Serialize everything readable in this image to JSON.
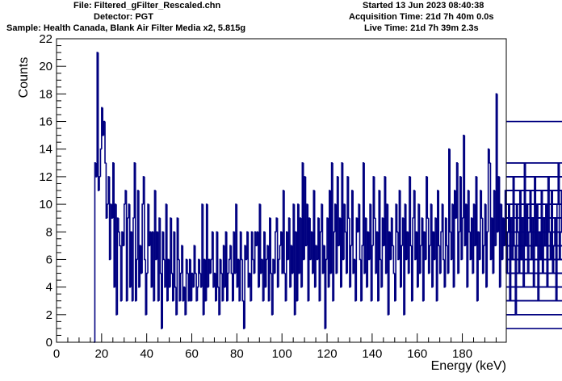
{
  "header": {
    "file": "File: Filtered_gFilter_Rescaled.chn",
    "detector": "Detector: PGT",
    "sample": "Sample: Health Canada, Blank Air Filter Media x2, 5.815g",
    "started": "Started 13 Jun 2023 08:40:38",
    "acquisition_time": "Acquisition Time: 21d 7h 40m 0.0s",
    "live_time": "Live Time: 21d 7h 39m 2.3s"
  },
  "colors": {
    "series": "#000080",
    "axis": "#000000"
  },
  "chart_data": {
    "type": "line",
    "style": "step histogram",
    "xlabel": "Energy (keV)",
    "ylabel": "Counts",
    "xlim": [
      0,
      199.5
    ],
    "ylim": [
      0,
      22
    ],
    "x_ticks": [
      0,
      20,
      40,
      60,
      80,
      100,
      120,
      140,
      160,
      180
    ],
    "y_ticks": [
      0,
      2,
      4,
      6,
      8,
      10,
      12,
      14,
      16,
      18,
      20,
      22
    ],
    "bin_width_keV": 0.5,
    "x_start": 16.5,
    "series": [
      {
        "values": [
          0,
          13,
          12,
          21,
          11,
          12,
          14,
          17,
          15,
          16,
          13,
          9,
          10,
          12,
          6,
          10,
          9,
          13,
          4,
          10,
          2,
          9,
          8,
          7,
          3,
          8,
          7,
          10,
          11,
          3,
          9,
          10,
          4,
          8,
          3,
          9,
          13,
          3,
          6,
          11,
          4,
          7,
          5,
          10,
          12,
          6,
          2,
          5,
          10,
          7,
          8,
          4,
          8,
          3,
          11,
          6,
          8,
          3,
          9,
          5,
          1,
          8,
          6,
          4,
          10,
          3,
          6,
          4,
          9,
          5,
          3,
          8,
          4,
          2,
          9,
          6,
          3,
          5,
          7,
          3,
          4,
          2,
          6,
          5,
          3,
          6,
          3,
          5,
          4,
          7,
          5,
          3,
          4,
          6,
          5,
          4,
          10,
          2,
          6,
          3,
          10,
          4,
          6,
          5,
          6,
          8,
          4,
          5,
          3,
          8,
          4,
          2,
          6,
          5,
          3,
          7,
          4,
          8,
          3,
          5,
          6,
          7,
          5,
          3,
          8,
          5,
          10,
          4,
          6,
          3,
          8,
          6,
          3,
          1,
          7,
          6,
          8,
          4,
          5,
          3,
          8,
          6,
          5,
          8,
          7,
          8,
          4,
          10,
          5,
          6,
          3,
          8,
          4,
          6,
          7,
          3,
          9,
          5,
          2,
          6,
          5,
          8,
          9,
          4,
          6,
          7,
          8,
          5,
          11,
          5,
          3,
          8,
          6,
          9,
          4,
          7,
          5,
          10,
          2,
          8,
          3,
          10,
          5,
          9,
          4,
          13,
          6,
          12,
          7,
          10,
          3,
          9,
          6,
          8,
          5,
          11,
          4,
          7,
          6,
          9,
          3,
          8,
          10,
          5,
          7,
          1,
          6,
          9,
          4,
          11,
          5,
          13,
          3,
          8,
          10,
          5,
          12,
          7,
          9,
          4,
          13,
          6,
          10,
          8,
          5,
          12,
          9,
          4,
          7,
          11,
          5,
          6,
          3,
          9,
          8,
          10,
          6,
          3,
          7,
          13,
          5,
          9,
          4,
          8,
          6,
          10,
          3,
          7,
          12,
          9,
          5,
          8,
          3,
          11,
          6,
          4,
          9,
          7,
          12,
          5,
          10,
          2,
          8,
          6,
          9,
          7,
          5,
          3,
          10,
          8,
          6,
          11,
          4,
          7,
          9,
          2,
          10,
          6,
          8,
          5,
          12,
          7,
          3,
          9,
          11,
          6,
          8,
          4,
          10,
          5,
          7,
          9,
          3,
          8,
          6,
          12,
          9,
          5,
          7,
          10,
          4,
          8,
          6,
          9,
          3,
          11,
          7,
          5,
          8,
          10,
          6,
          4,
          9,
          7,
          5,
          14,
          8,
          6,
          10,
          4,
          11,
          9,
          13,
          5,
          8,
          12,
          6,
          9,
          15,
          7,
          10,
          4,
          11,
          8,
          6,
          9,
          5,
          10,
          7,
          12,
          3,
          8,
          6,
          11,
          9,
          5,
          7,
          10,
          4,
          8,
          14,
          13,
          6,
          9,
          5,
          11,
          7,
          18,
          8,
          12,
          4,
          10,
          6,
          9,
          7,
          11,
          5,
          8,
          10,
          3,
          9,
          6,
          12,
          7,
          2,
          10,
          8,
          5,
          11,
          6,
          9,
          4,
          13,
          7,
          10,
          5,
          8,
          11,
          6,
          9,
          4,
          12,
          7,
          10,
          3,
          8,
          6,
          11,
          5,
          9,
          7,
          10,
          4,
          12,
          8,
          6,
          11,
          5,
          7,
          9,
          3,
          10,
          13,
          6,
          8,
          11,
          5,
          9,
          7,
          12,
          4,
          10,
          8,
          6,
          11,
          3,
          9,
          7,
          10,
          5,
          8,
          12,
          6,
          9,
          4,
          11,
          7,
          10,
          8,
          5,
          12,
          6,
          13,
          9,
          7,
          10,
          4,
          11,
          8,
          1,
          9,
          6,
          12,
          7,
          10,
          5,
          8,
          11,
          6,
          9,
          4,
          10,
          13,
          7,
          8,
          5,
          11,
          6,
          9,
          10,
          4,
          12,
          7,
          8,
          3,
          11,
          6,
          9,
          5,
          10,
          8,
          7,
          16,
          4,
          9,
          6,
          11,
          7,
          8,
          5,
          10,
          3,
          9,
          2,
          8,
          6,
          10,
          4,
          7,
          9,
          5,
          11,
          8,
          6,
          10,
          2,
          8
        ]
      }
    ]
  }
}
